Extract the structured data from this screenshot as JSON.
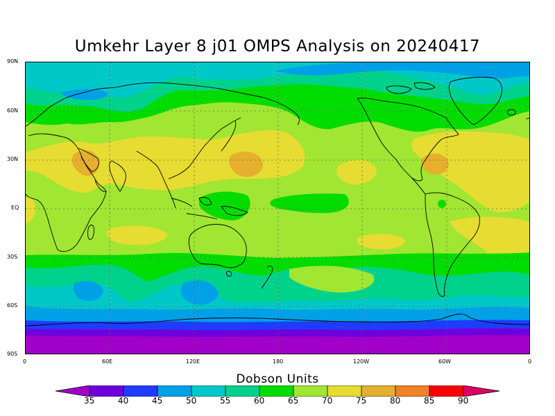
{
  "title": "Umkehr Layer 8 j01 OMPS Analysis on 20240417",
  "map": {
    "projection": "cylindrical equidistant",
    "lat_ticks": [
      "90N",
      "60N",
      "30N",
      "EQ",
      "30S",
      "60S",
      "90S"
    ],
    "lon_ticks": [
      "0",
      "60E",
      "120E",
      "180",
      "120W",
      "60W",
      "0"
    ],
    "grid": "dotted"
  },
  "colorbar": {
    "title": "Dobson Units",
    "labels": [
      "35",
      "40",
      "45",
      "50",
      "55",
      "60",
      "65",
      "70",
      "75",
      "80",
      "85",
      "90"
    ],
    "colors": [
      "#a000c8",
      "#6e00dc",
      "#1e3cff",
      "#00a0e6",
      "#00c8c8",
      "#00d28c",
      "#00dc00",
      "#a0e632",
      "#e6dc32",
      "#e6af2d",
      "#f08228",
      "#fa0000",
      "#dc0064"
    ]
  },
  "colors": {
    "c35": "#a000c8",
    "c40": "#6e00dc",
    "c45": "#1e3cff",
    "c50": "#00a0e6",
    "c55": "#00c8c8",
    "c60": "#00d28c",
    "c65": "#00dc00",
    "c70": "#a0e632",
    "c75": "#e6dc32",
    "c80": "#e6af2d"
  }
}
